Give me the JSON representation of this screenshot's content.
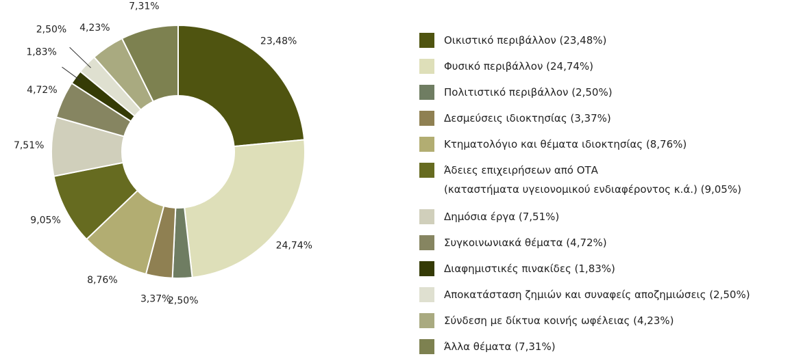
{
  "chart_data": {
    "type": "pie",
    "donut": true,
    "categories": [
      "Οικιστικό περιβάλλον (23,48%)",
      "Φυσικό περιβάλλον (24,74%)",
      "Πολιτιστικό περιβάλλον (2,50%)",
      "Δεσμεύσεις ιδιοκτησίας (3,37%)",
      "Κτηματολόγιο και θέματα ιδιοκτησίας (8,76%)",
      "Άδειες επιχειρήσεων από ΟΤΑ\n(καταστήματα υγειονομικού ενδιαφέροντος κ.ά.) (9,05%)",
      "Δημόσια έργα (7,51%)",
      "Συγκοινωνιακά θέματα (4,72%)",
      "Διαφημιστικές πινακίδες (1,83%)",
      "Αποκατάσταση ζημιών και συναφείς αποζημιώσεις (2,50%)",
      "Σύνδεση με δίκτυα κοινής ωφέλειας (4,23%)",
      "Άλλα θέματα (7,31%)"
    ],
    "values": [
      23.48,
      24.74,
      2.5,
      3.37,
      8.76,
      9.05,
      7.51,
      4.72,
      1.83,
      2.5,
      4.23,
      7.31
    ],
    "value_labels": [
      "23,48%",
      "24,74%",
      "2,50%",
      "3,37%",
      "8,76%",
      "9,05%",
      "7,51%",
      "4,72%",
      "1,83%",
      "2,50%",
      "4,23%",
      "7,31%"
    ],
    "colors": [
      "#4f5410",
      "#dedfb9",
      "#6f7d62",
      "#8f8052",
      "#b2ad72",
      "#666b20",
      "#d0cfbb",
      "#868561",
      "#353b06",
      "#dfe0d0",
      "#a9aa80",
      "#7d8150"
    ]
  }
}
